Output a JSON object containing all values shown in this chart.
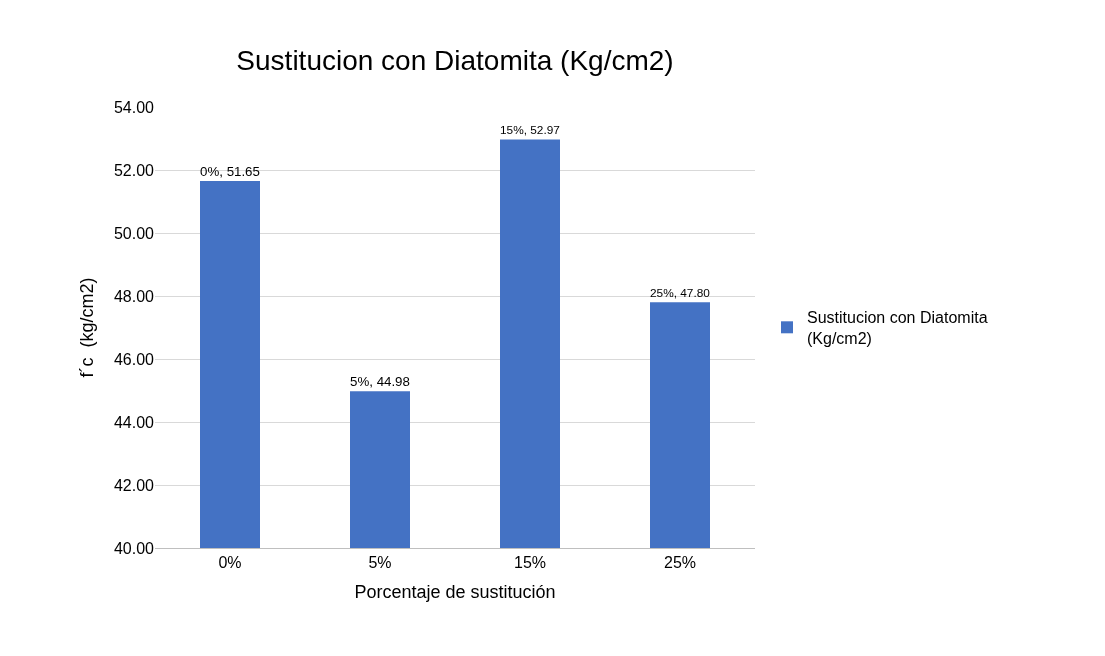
{
  "chart_data": {
    "type": "bar",
    "title": "Sustitucion con Diatomita (Kg/cm2)",
    "xlabel": "Porcentaje de sustitución",
    "ylabel": "f´c  (kg/cm2)",
    "categories": [
      "0%",
      "5%",
      "15%",
      "25%"
    ],
    "series": [
      {
        "name": "Sustitucion con Diatomita (Kg/cm2)",
        "color": "#4472c4",
        "values": [
          51.65,
          44.98,
          52.97,
          47.8
        ],
        "value_labels": [
          "0%, 51.65",
          "5%, 44.98",
          "15%, 52.97",
          "25%, 47.80"
        ]
      }
    ],
    "ylim": [
      40,
      54
    ],
    "yticks": [
      {
        "value": 40,
        "label": "40.00"
      },
      {
        "value": 42,
        "label": "42.00"
      },
      {
        "value": 44,
        "label": "44.00"
      },
      {
        "value": 46,
        "label": "46.00"
      },
      {
        "value": 48,
        "label": "48.00"
      },
      {
        "value": 50,
        "label": "50.00"
      },
      {
        "value": 52,
        "label": "52.00"
      },
      {
        "value": 54,
        "label": "54.00"
      }
    ],
    "grid": "y",
    "legend": "right"
  }
}
